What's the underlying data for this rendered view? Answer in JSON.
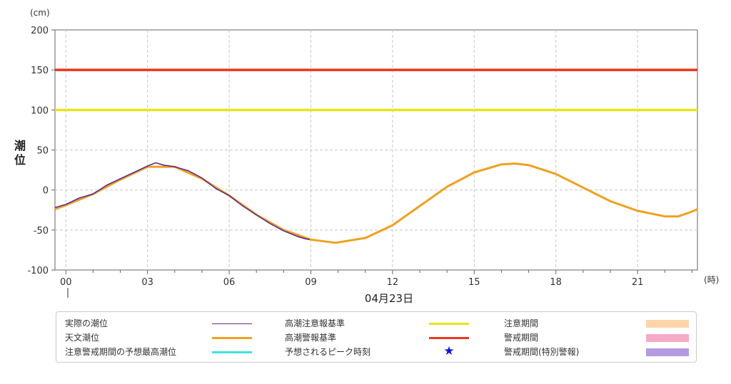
{
  "chart_data": {
    "type": "line",
    "ylabel": "潮位",
    "yunit": "(cm)",
    "xunit": "(時)",
    "date_label": "04月23日",
    "ylim": [
      -100,
      200
    ],
    "xlim": [
      -0.4,
      23.2
    ],
    "yticks": [
      -100,
      -50,
      0,
      50,
      100,
      150,
      200
    ],
    "xticks": [
      0,
      3,
      6,
      9,
      12,
      15,
      18,
      21
    ],
    "xtick_labels": [
      "00",
      "03",
      "06",
      "09",
      "12",
      "15",
      "18",
      "21"
    ],
    "grid": true,
    "reference_lines": [
      {
        "name": "高潮警報基準",
        "value": 150,
        "color": "#e8381b"
      },
      {
        "name": "高潮注意報基準",
        "value": 100,
        "color": "#e6e61a"
      }
    ],
    "series": [
      {
        "name": "天文潮位",
        "color": "#f0a020",
        "x": [
          -0.4,
          0,
          1,
          2,
          3,
          4,
          5,
          6,
          7,
          8,
          9,
          9.9,
          11,
          12,
          13,
          14,
          15,
          16,
          16.5,
          17,
          18,
          19,
          20,
          21,
          22,
          22.5,
          23,
          23.2
        ],
        "y": [
          -24,
          -19,
          -5,
          13,
          29,
          29,
          14,
          -7,
          -31,
          -50,
          -62,
          -66,
          -60,
          -44,
          -20,
          4,
          22,
          32,
          33,
          31,
          20,
          3,
          -14,
          -26,
          -33,
          -33,
          -27,
          -24
        ]
      },
      {
        "name": "実際の潮位",
        "color": "#5c2d91",
        "x": [
          -0.4,
          0,
          0.5,
          1,
          1.5,
          2,
          2.5,
          3,
          3.3,
          3.6,
          4,
          4.5,
          5,
          5.5,
          6,
          6.5,
          7,
          7.5,
          8,
          8.5,
          8.8,
          8.95
        ],
        "y": [
          -22,
          -18,
          -10,
          -5,
          6,
          14,
          22,
          30,
          34,
          31,
          29,
          24,
          15,
          2,
          -7,
          -20,
          -31,
          -42,
          -51,
          -58,
          -61,
          -62
        ]
      }
    ]
  },
  "legend": {
    "items": [
      {
        "label": "実際の潮位",
        "kind": "thin",
        "color": "#5c2d91"
      },
      {
        "label": "天文潮位",
        "kind": "line",
        "color": "#f0a020"
      },
      {
        "label": "注意警戒期間の予想最高潮位",
        "kind": "line",
        "color": "#40e0e0"
      },
      {
        "label": "高潮注意報基準",
        "kind": "line",
        "color": "#e6e61a"
      },
      {
        "label": "高潮警報基準",
        "kind": "line",
        "color": "#e8381b"
      },
      {
        "label": "予想されるピーク時刻",
        "kind": "star",
        "color": "#0a14d9",
        "symbol": "★"
      },
      {
        "label": "注意期間",
        "kind": "box",
        "color": "#fcd5a8"
      },
      {
        "label": "警戒期間",
        "kind": "box",
        "color": "#f7aac6"
      },
      {
        "label": "警戒期間(特別警報)",
        "kind": "box",
        "color": "#b49ae0"
      }
    ]
  }
}
